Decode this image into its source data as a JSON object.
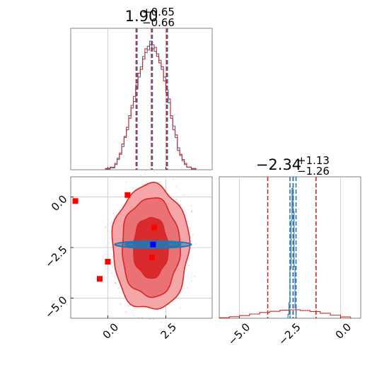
{
  "chart_data": [
    {
      "type": "histogram",
      "panel": "top-left",
      "title": {
        "main": "1.90",
        "plus": "+0.65",
        "minus": "−0.66"
      },
      "xlim": [
        -1.6,
        4.5
      ],
      "x_ticks": [
        "0.0",
        "2.5"
      ],
      "x_tick_values": [
        0.0,
        2.5
      ],
      "grid": true,
      "quantile_lines": [
        1.24,
        1.9,
        2.55
      ],
      "series": [
        {
          "color": "#1f77b4",
          "bin_edges": [
            -0.1,
            0.1,
            0.3,
            0.4,
            0.5,
            0.6,
            0.7,
            0.8,
            0.9,
            1.0,
            1.1,
            1.2,
            1.3,
            1.4,
            1.5,
            1.6,
            1.7,
            1.8,
            1.9,
            2.0,
            2.1,
            2.2,
            2.3,
            2.4,
            2.5,
            2.6,
            2.7,
            2.8,
            2.9,
            3.0,
            3.1,
            3.2,
            3.3,
            3.4,
            3.6,
            3.8
          ],
          "counts": [
            0.5,
            1.5,
            4,
            8,
            12,
            18,
            26,
            31,
            42,
            48,
            53,
            66,
            72,
            80,
            88,
            91,
            96,
            100,
            97,
            92,
            90,
            85,
            78,
            72,
            62,
            52,
            42,
            34,
            25,
            17,
            11,
            8,
            4,
            2,
            0.5
          ]
        },
        {
          "color": "#d62728",
          "bin_edges": [
            -0.1,
            0.1,
            0.3,
            0.4,
            0.5,
            0.6,
            0.7,
            0.8,
            0.9,
            1.0,
            1.1,
            1.2,
            1.3,
            1.4,
            1.5,
            1.6,
            1.7,
            1.8,
            1.9,
            2.0,
            2.1,
            2.2,
            2.3,
            2.4,
            2.5,
            2.6,
            2.7,
            2.8,
            2.9,
            3.0,
            3.1,
            3.2,
            3.3,
            3.4,
            3.6,
            3.8
          ],
          "counts": [
            1,
            2,
            5,
            9,
            13,
            20,
            25,
            33,
            40,
            50,
            57,
            63,
            75,
            78,
            86,
            94,
            93,
            97,
            94,
            95,
            88,
            83,
            80,
            69,
            60,
            55,
            40,
            31,
            27,
            15,
            12,
            7,
            5,
            2,
            1
          ]
        }
      ]
    },
    {
      "type": "contour",
      "panel": "bottom-left",
      "xlim": [
        -1.6,
        4.5
      ],
      "ylim": [
        -6.0,
        1.0
      ],
      "x_ticks": [
        "0.0",
        "2.5"
      ],
      "x_tick_values": [
        0.0,
        2.5
      ],
      "y_ticks": [
        "0.0",
        "−2.5",
        "−5.0"
      ],
      "y_tick_values": [
        0.0,
        -2.5,
        -5.0
      ],
      "grid": true,
      "red_contour_levels": [
        {
          "center": [
            1.85,
            -2.5
          ],
          "half_widths": [
            0.75,
            1.5
          ],
          "fill": "#ef9a9b"
        },
        {
          "center": [
            1.85,
            -2.5
          ],
          "half_widths": [
            1.25,
            2.45
          ],
          "fill": "#ef9a9b"
        },
        {
          "center": [
            1.85,
            -2.5
          ],
          "half_widths": [
            1.65,
            3.1
          ],
          "fill": "#f6c9ca"
        }
      ],
      "blue_contour_levels": [
        {
          "center": [
            1.95,
            -2.35
          ],
          "half_widths": [
            1.65,
            0.12
          ]
        },
        {
          "center": [
            1.95,
            -2.35
          ],
          "half_widths": [
            1.2,
            0.08
          ]
        }
      ],
      "red_markers": [
        {
          "x": -1.4,
          "y": -0.2
        },
        {
          "x": 0.85,
          "y": 0.1
        },
        {
          "x": 2.0,
          "y": -1.5
        },
        {
          "x": 0.0,
          "y": -3.2
        },
        {
          "x": -0.35,
          "y": -4.05
        },
        {
          "x": 1.9,
          "y": -3.0
        }
      ],
      "blue_marker": {
        "x": 1.95,
        "y": -2.35
      }
    },
    {
      "type": "histogram",
      "panel": "bottom-right",
      "title": {
        "main": "−2.34",
        "plus": "+1.13",
        "minus": "−1.26"
      },
      "xlim": [
        -6.0,
        1.0
      ],
      "x_ticks": [
        "−5.0",
        "−2.5",
        "0.0"
      ],
      "x_tick_values": [
        -5.0,
        -2.5,
        0.0
      ],
      "grid": true,
      "quantile_lines_red": [
        -3.6,
        -2.34,
        -1.21
      ],
      "quantile_lines_blue": [
        -2.5,
        -2.35,
        -2.2
      ],
      "series": [
        {
          "color": "#1f77b4",
          "bin_edges": [
            -2.6,
            -2.55,
            -2.5,
            -2.45,
            -2.4,
            -2.35,
            -2.3,
            -2.25,
            -2.2
          ],
          "counts": [
            3,
            12,
            38,
            75,
            100,
            82,
            40,
            8
          ]
        },
        {
          "color": "#d62728",
          "bin_edges": [
            -6.0,
            -5.5,
            -5.0,
            -4.5,
            -4.0,
            -3.5,
            -3.0,
            -2.5,
            -2.0,
            -1.5,
            -1.0,
            -0.5,
            0.0,
            0.5
          ],
          "counts": [
            0.3,
            0.8,
            1.4,
            2.2,
            3.0,
            3.6,
            4.2,
            4.4,
            4.0,
            3.5,
            2.6,
            1.6,
            0.7
          ]
        }
      ]
    }
  ]
}
